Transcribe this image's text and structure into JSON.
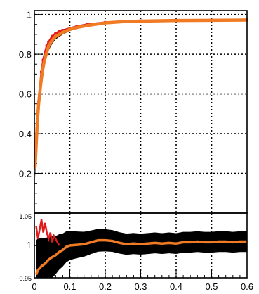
{
  "chart_data": [
    {
      "type": "scatter",
      "title": "",
      "xlabel": "",
      "ylabel": "",
      "xlim": [
        0,
        0.6
      ],
      "ylim": [
        0,
        1.02
      ],
      "grid": true,
      "x_ticks": [
        "0",
        "0.1",
        "0.2",
        "0.3",
        "0.4",
        "0.5",
        "0.6"
      ],
      "y_ticks": [
        "0.2",
        "0.4",
        "0.6",
        "0.8",
        "1"
      ],
      "series": [
        {
          "color": "#1f3ea8",
          "x": [
            0.002,
            0.005,
            0.008,
            0.012,
            0.016,
            0.02,
            0.025,
            0.03,
            0.035,
            0.04,
            0.05,
            0.06,
            0.07,
            0.08,
            0.1,
            0.12,
            0.15,
            0.2,
            0.25,
            0.3,
            0.4,
            0.5,
            0.6
          ],
          "y": [
            0.25,
            0.36,
            0.47,
            0.56,
            0.63,
            0.69,
            0.75,
            0.79,
            0.82,
            0.85,
            0.88,
            0.9,
            0.91,
            0.92,
            0.93,
            0.94,
            0.95,
            0.96,
            0.965,
            0.968,
            0.97,
            0.972,
            0.973
          ]
        },
        {
          "color": "#e01b1b",
          "x": [
            0.002,
            0.005,
            0.008,
            0.012,
            0.016,
            0.02,
            0.025,
            0.03,
            0.035,
            0.04,
            0.05,
            0.06,
            0.07,
            0.08,
            0.1,
            0.12,
            0.15,
            0.2,
            0.25,
            0.3,
            0.4,
            0.5,
            0.6
          ],
          "y": [
            0.24,
            0.35,
            0.46,
            0.56,
            0.64,
            0.71,
            0.77,
            0.81,
            0.84,
            0.86,
            0.89,
            0.905,
            0.915,
            0.92,
            0.93,
            0.94,
            0.95,
            0.96,
            0.965,
            0.968,
            0.97,
            0.972,
            0.973
          ]
        },
        {
          "color": "#f07b24",
          "x": [
            0.002,
            0.005,
            0.008,
            0.012,
            0.016,
            0.02,
            0.025,
            0.03,
            0.035,
            0.04,
            0.05,
            0.06,
            0.07,
            0.08,
            0.1,
            0.12,
            0.15,
            0.2,
            0.25,
            0.3,
            0.4,
            0.5,
            0.6
          ],
          "y": [
            0.23,
            0.34,
            0.45,
            0.55,
            0.62,
            0.68,
            0.74,
            0.78,
            0.81,
            0.84,
            0.87,
            0.89,
            0.9,
            0.91,
            0.925,
            0.935,
            0.945,
            0.958,
            0.964,
            0.967,
            0.97,
            0.971,
            0.972
          ]
        }
      ]
    },
    {
      "type": "line",
      "title": "",
      "xlabel": "",
      "ylabel": "",
      "xlim": [
        0,
        0.6
      ],
      "ylim": [
        0.95,
        1.05
      ],
      "grid": true,
      "x_ticks": [
        "0",
        "0.1",
        "0.2",
        "0.3",
        "0.4",
        "0.5",
        "0.6"
      ],
      "y_ticks": [
        "0.95",
        "1",
        "1.05"
      ],
      "series": [
        {
          "color": "#e01b1b",
          "x": [
            0.005,
            0.01,
            0.015,
            0.02,
            0.025,
            0.03,
            0.035,
            0.04,
            0.045,
            0.05,
            0.055,
            0.06,
            0.07
          ],
          "y": [
            1.03,
            1.01,
            1.025,
            1.04,
            1.02,
            1.035,
            1.02,
            1.01,
            1.02,
            1.005,
            1.015,
            1.01,
            1.0
          ]
        },
        {
          "color": "#f07b24",
          "x": [
            0.005,
            0.01,
            0.02,
            0.03,
            0.04,
            0.05,
            0.06,
            0.07,
            0.08,
            0.09,
            0.1,
            0.12,
            0.14,
            0.16,
            0.18,
            0.2,
            0.22,
            0.24,
            0.26,
            0.28,
            0.3,
            0.32,
            0.34,
            0.36,
            0.38,
            0.4,
            0.42,
            0.44,
            0.46,
            0.48,
            0.5,
            0.52,
            0.54,
            0.56,
            0.58,
            0.6
          ],
          "y": [
            0.955,
            0.962,
            0.968,
            0.972,
            0.978,
            0.982,
            0.985,
            0.99,
            0.993,
            0.998,
            1.0,
            1.001,
            1.002,
            1.005,
            1.008,
            1.008,
            1.007,
            1.004,
            1.002,
            1.003,
            1.002,
            1.003,
            1.004,
            1.003,
            1.004,
            1.003,
            1.005,
            1.005,
            1.006,
            1.005,
            1.005,
            1.006,
            1.006,
            1.005,
            1.006,
            1.006
          ]
        }
      ]
    }
  ]
}
